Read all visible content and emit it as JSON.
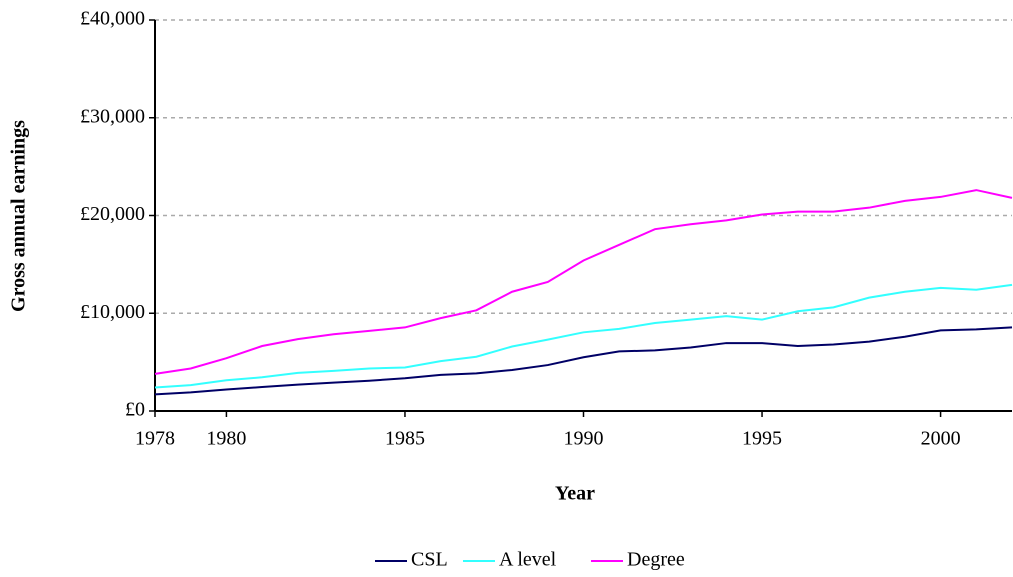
{
  "chart_data": {
    "type": "line",
    "x_label": "Year",
    "y_label": "Gross annual earnings",
    "x": [
      1978,
      1979,
      1980,
      1981,
      1982,
      1983,
      1984,
      1985,
      1986,
      1987,
      1988,
      1989,
      1990,
      1991,
      1992,
      1993,
      1994,
      1995,
      1996,
      1997,
      1998,
      1999,
      2000,
      2001,
      2002
    ],
    "series": [
      {
        "name": "CSL",
        "color": "#000066",
        "values": [
          1700,
          1900,
          2200,
          2450,
          2700,
          2900,
          3100,
          3350,
          3700,
          3850,
          4200,
          4700,
          5500,
          6100,
          6200,
          6500,
          6950,
          6950,
          6650,
          6800,
          7100,
          7600,
          8250,
          8350,
          8550
        ]
      },
      {
        "name": "A level",
        "color": "#33ffff",
        "values": [
          2400,
          2650,
          3150,
          3450,
          3900,
          4100,
          4350,
          4450,
          5100,
          5550,
          6600,
          7300,
          8050,
          8400,
          9000,
          9350,
          9700,
          9350,
          10200,
          10600,
          11600,
          12200,
          12600,
          12400,
          12900
        ]
      },
      {
        "name": "Degree",
        "color": "#ff00ff",
        "values": [
          3800,
          4350,
          5400,
          6650,
          7350,
          7850,
          8200,
          8550,
          9500,
          10300,
          12200,
          13200,
          15400,
          17000,
          18600,
          19100,
          19500,
          20100,
          20400,
          20400,
          20800,
          21500,
          21900,
          22600,
          21800
        ]
      }
    ],
    "xlim": [
      1978,
      2002
    ],
    "xticks": [
      1978,
      1980,
      1985,
      1990,
      1995,
      2000
    ],
    "ylim": [
      0,
      40000
    ],
    "yticks": [
      {
        "value": 0,
        "label": "£0"
      },
      {
        "value": 10000,
        "label": "£10,000"
      },
      {
        "value": 20000,
        "label": "£20,000"
      },
      {
        "value": 30000,
        "label": "£30,000"
      },
      {
        "value": 40000,
        "label": "£40,000"
      }
    ],
    "grid": true,
    "legend": "bottom"
  }
}
